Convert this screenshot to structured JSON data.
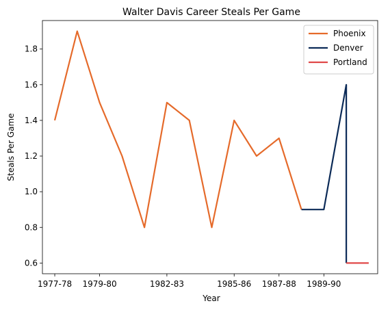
{
  "chart_data": {
    "type": "line",
    "title": "Walter Davis  Career Steals Per Game",
    "xlabel": "Year",
    "ylabel": "Steals Per Game",
    "x_tick_labels": [
      "1977-78",
      "1979-80",
      "1982-83",
      "1985-86",
      "1987-88",
      "1989-90"
    ],
    "y_ticks": [
      0.6,
      0.8,
      1.0,
      1.2,
      1.4,
      1.6,
      1.8
    ],
    "y_tick_labels": [
      "0.6",
      "0.8",
      "1.0",
      "1.2",
      "1.4",
      "1.6",
      "1.8"
    ],
    "ylim": [
      0.54,
      1.96
    ],
    "grid": false,
    "legend": "top-right",
    "series": [
      {
        "name": "Phoenix",
        "color": "#e56a2a",
        "points": [
          {
            "season": "1977-78",
            "value": 1.4
          },
          {
            "season": "1978-79",
            "value": 1.9
          },
          {
            "season": "1979-80",
            "value": 1.5
          },
          {
            "season": "1980-81",
            "value": 1.2
          },
          {
            "season": "1981-82",
            "value": 0.8
          },
          {
            "season": "1982-83",
            "value": 1.5
          },
          {
            "season": "1983-84",
            "value": 1.4
          },
          {
            "season": "1984-85",
            "value": 0.8
          },
          {
            "season": "1985-86",
            "value": 1.4
          },
          {
            "season": "1986-87",
            "value": 1.2
          },
          {
            "season": "1987-88",
            "value": 1.3
          },
          {
            "season": "1988-89",
            "value": 0.9
          }
        ]
      },
      {
        "name": "Denver",
        "color": "#0b2a57",
        "points": [
          {
            "season": "1988-89",
            "value": 0.9
          },
          {
            "season": "1989-90",
            "value": 0.9
          },
          {
            "season": "1990-91",
            "value": 1.6
          },
          {
            "season": "1990-91",
            "value": 0.6
          }
        ]
      },
      {
        "name": "Portland",
        "color": "#e04848",
        "points": [
          {
            "season": "1990-91",
            "value": 0.6
          },
          {
            "season": "1991-92",
            "value": 0.6
          }
        ]
      }
    ]
  }
}
